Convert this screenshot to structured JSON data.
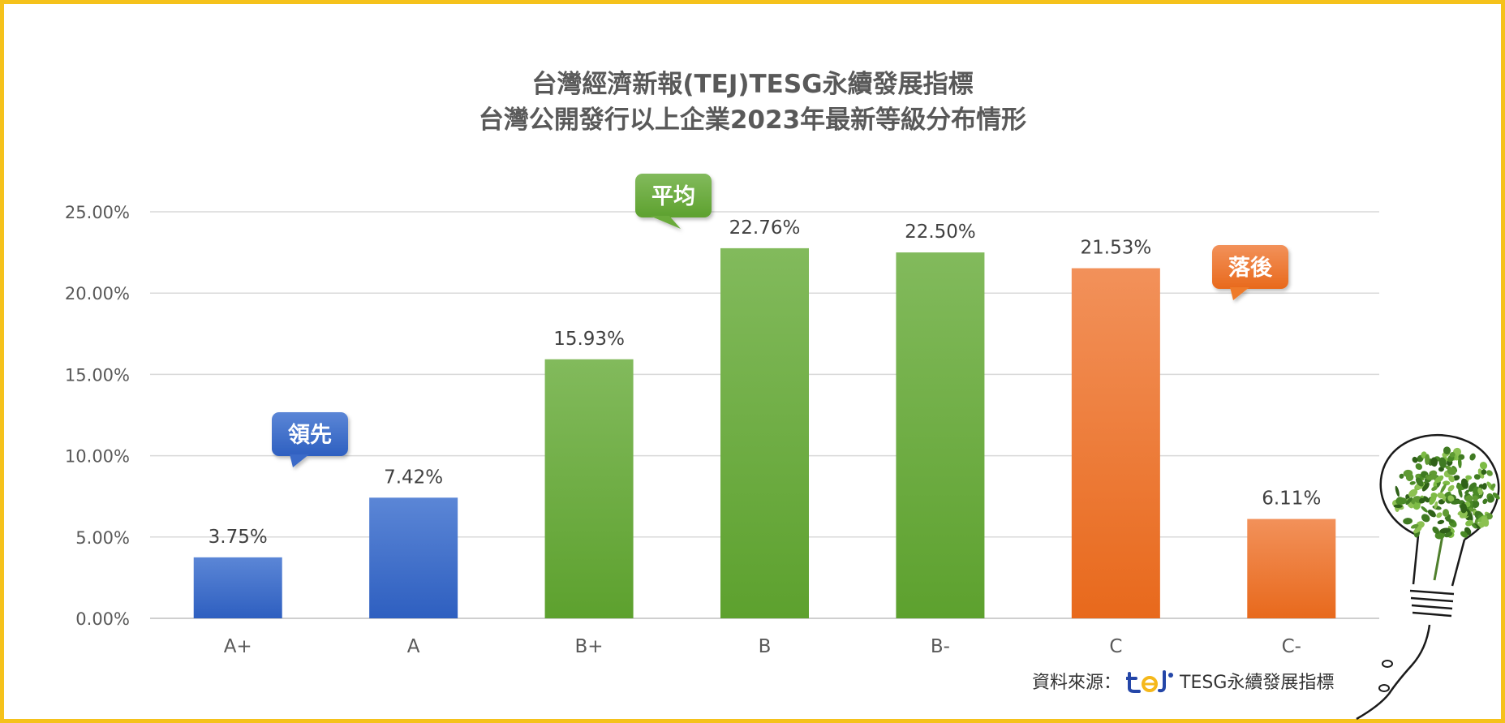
{
  "chart_data": {
    "type": "bar",
    "title_line1": "台灣經濟新報(TEJ)TESG永續發展指標",
    "title_line2": "台灣公開發行以上企業2023年最新等級分布情形",
    "categories": [
      "A+",
      "A",
      "B+",
      "B",
      "B-",
      "C",
      "C-"
    ],
    "values": [
      3.75,
      7.42,
      15.93,
      22.76,
      22.5,
      21.53,
      6.11
    ],
    "data_labels": [
      "3.75%",
      "7.42%",
      "15.93%",
      "22.76%",
      "22.50%",
      "21.53%",
      "6.11%"
    ],
    "ylim": [
      0,
      25
    ],
    "yticks": [
      "0.00%",
      "5.00%",
      "10.00%",
      "15.00%",
      "20.00%",
      "25.00%"
    ],
    "grid": true,
    "bar_groups": [
      "lead",
      "lead",
      "average",
      "average",
      "average",
      "lag",
      "lag"
    ],
    "group_colors": {
      "lead": "#3a6bc8",
      "average": "#6aab3a",
      "lag": "#ee7a2a"
    },
    "callouts": [
      {
        "text": "領先",
        "group": "lead"
      },
      {
        "text": "平均",
        "group": "average"
      },
      {
        "text": "落後",
        "group": "lag"
      }
    ]
  },
  "source": {
    "label": "資料來源：",
    "brand": "TESG永續發展指標",
    "logo_icon": "tej-logo"
  }
}
